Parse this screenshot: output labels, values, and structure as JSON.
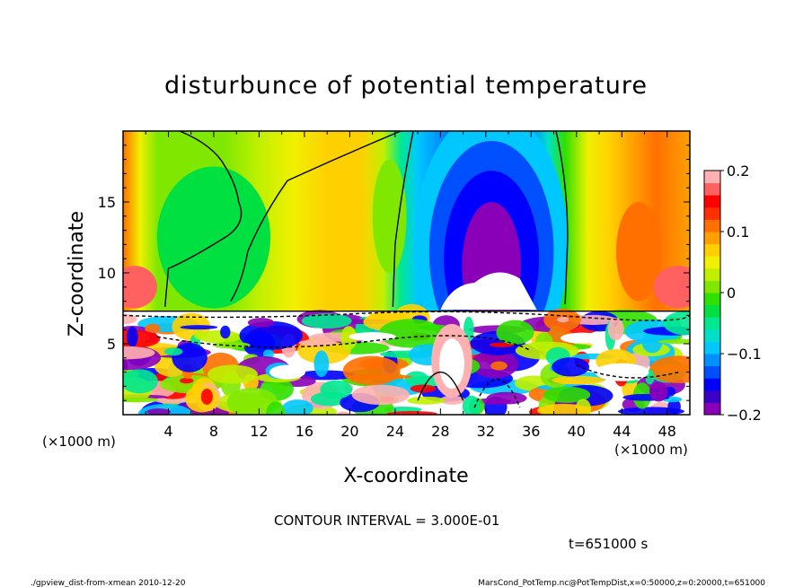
{
  "chart_data": {
    "type": "heatmap",
    "title": "disturbunce of potential temperature",
    "xlabel": "X-coordinate",
    "ylabel": "Z-coordinate",
    "x_unit": "(×1000 m)",
    "z_unit": "(×1000 m)",
    "xlim": [
      0,
      50
    ],
    "ylim": [
      0,
      20
    ],
    "xticks": [
      "4",
      "8",
      "12",
      "16",
      "20",
      "24",
      "28",
      "32",
      "36",
      "40",
      "44",
      "48"
    ],
    "yticks": [
      "5",
      "10",
      "15"
    ],
    "colorbar": {
      "range": [
        -0.2,
        0.2
      ],
      "tick_labels": [
        "0.2",
        "0.1",
        "0",
        "−0.1",
        "−0.2"
      ],
      "tick_values": [
        0.2,
        0.1,
        0,
        -0.1,
        -0.2
      ]
    },
    "contour_interval_text": "CONTOUR INTERVAL = 3.000E-01",
    "time_text": "t=651000 s",
    "grid": false
  },
  "footer": {
    "left": "./gpview_dist-from-xmean  2010-12-20",
    "right": "MarsCond_PotTemp.nc@PotTempDist,x=0:50000,z=0:20000,t=651000"
  },
  "colors": {
    "colormap": [
      "#8a00b8",
      "#3a00c8",
      "#0000ff",
      "#0050ff",
      "#0090ff",
      "#00c8ff",
      "#00e0c8",
      "#00e890",
      "#00e040",
      "#30e000",
      "#80e800",
      "#c0f000",
      "#f0f000",
      "#ffd000",
      "#ffa000",
      "#ff7000",
      "#ff3000",
      "#ff0000",
      "#ff6060",
      "#ffb0b0"
    ]
  }
}
